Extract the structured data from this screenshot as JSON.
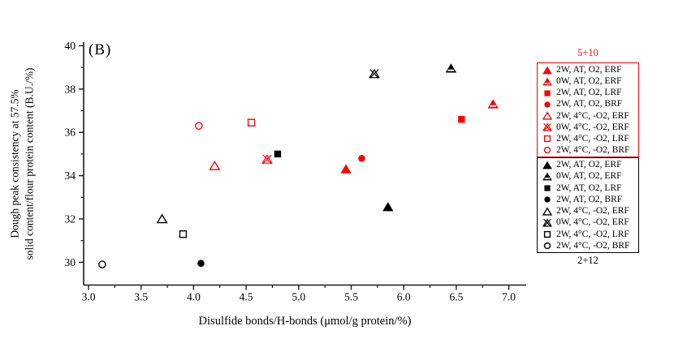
{
  "panel_label": "(B)",
  "axes": {
    "x": {
      "label": "Disulfide bonds/H-bonds (μmol/g protein/%)",
      "tick_labels": [
        "3.0",
        "3.5",
        "4.0",
        "4.5",
        "5.0",
        "5.5",
        "6.0",
        "6.5",
        "7.0"
      ],
      "minor_ticks": [
        3.25,
        3.75,
        4.25,
        4.75,
        5.25,
        5.75,
        6.25,
        6.75
      ]
    },
    "y": {
      "label_line1": "Dough peak consistency at 57.5%",
      "label_line2": "solid content/flour protein content (B.U./%)",
      "tick_labels": [
        "30",
        "32",
        "34",
        "36",
        "38",
        "40"
      ],
      "minor_ticks": [
        31,
        33,
        35,
        37,
        39
      ]
    }
  },
  "legend": {
    "top_title": "5+10",
    "bottom_title": "2+12"
  },
  "colors": {
    "series_red": "#ff0000",
    "series_black": "#000000",
    "axis": "#1a1a1a"
  },
  "chart_data": {
    "type": "scatter",
    "xlabel": "Disulfide bonds/H-bonds (μmol/g protein/%)",
    "ylabel": "Dough peak consistency at 57.5% solid content/flour protein content (B.U./%)",
    "xlim": [
      2.95,
      7.17
    ],
    "ylim": [
      28.9,
      40.1
    ],
    "x_ticks": [
      3.0,
      3.5,
      4.0,
      4.5,
      5.0,
      5.5,
      6.0,
      6.5,
      7.0
    ],
    "y_ticks": [
      30,
      32,
      34,
      36,
      38,
      40
    ],
    "legend_position": "right",
    "grid": false,
    "series": [
      {
        "name": "5+10",
        "color": "#ff0000",
        "points": [
          {
            "marker": "triangle-filled",
            "label": "2W, AT, O2, ERF",
            "x": 5.45,
            "y": 34.3
          },
          {
            "marker": "triangle-half",
            "label": "0W, AT, O2, ERF",
            "x": 6.85,
            "y": 37.3
          },
          {
            "marker": "square-filled",
            "label": "2W, AT, O2, LRF",
            "x": 6.55,
            "y": 36.6
          },
          {
            "marker": "circle-filled",
            "label": "2W, AT, O2, BRF",
            "x": 5.6,
            "y": 34.8
          },
          {
            "marker": "triangle-open",
            "label": "2W, 4°C, -O2, ERF",
            "x": 4.2,
            "y": 34.45
          },
          {
            "marker": "triangle-cross",
            "label": "0W, 4°C, -O2, ERF",
            "x": 4.7,
            "y": 34.75
          },
          {
            "marker": "square-open",
            "label": "2W, 4°C, -O2, LRF",
            "x": 4.55,
            "y": 36.45
          },
          {
            "marker": "circle-open",
            "label": "2W, 4°C, -O2, BRF",
            "x": 4.05,
            "y": 36.3
          }
        ]
      },
      {
        "name": "2+12",
        "color": "#000000",
        "points": [
          {
            "marker": "triangle-filled",
            "label": "2W, AT, O2, ERF",
            "x": 5.85,
            "y": 32.55
          },
          {
            "marker": "triangle-half",
            "label": "0W, AT, O2, ERF",
            "x": 6.45,
            "y": 38.95
          },
          {
            "marker": "square-filled",
            "label": "2W, AT, O2, LRF",
            "x": 4.8,
            "y": 35.0
          },
          {
            "marker": "circle-filled",
            "label": "2W, AT, O2, BRF",
            "x": 4.07,
            "y": 29.95
          },
          {
            "marker": "triangle-open",
            "label": "2W, 4°C, -O2, ERF",
            "x": 3.7,
            "y": 32.0
          },
          {
            "marker": "triangle-cross",
            "label": "0W, 4°C, -O2, ERF",
            "x": 5.72,
            "y": 38.7
          },
          {
            "marker": "square-open",
            "label": "2W, 4°C, -O2, LRF",
            "x": 3.9,
            "y": 31.3
          },
          {
            "marker": "circle-open",
            "label": "2W, 4°C, -O2, BRF",
            "x": 3.13,
            "y": 29.9
          }
        ]
      }
    ]
  }
}
